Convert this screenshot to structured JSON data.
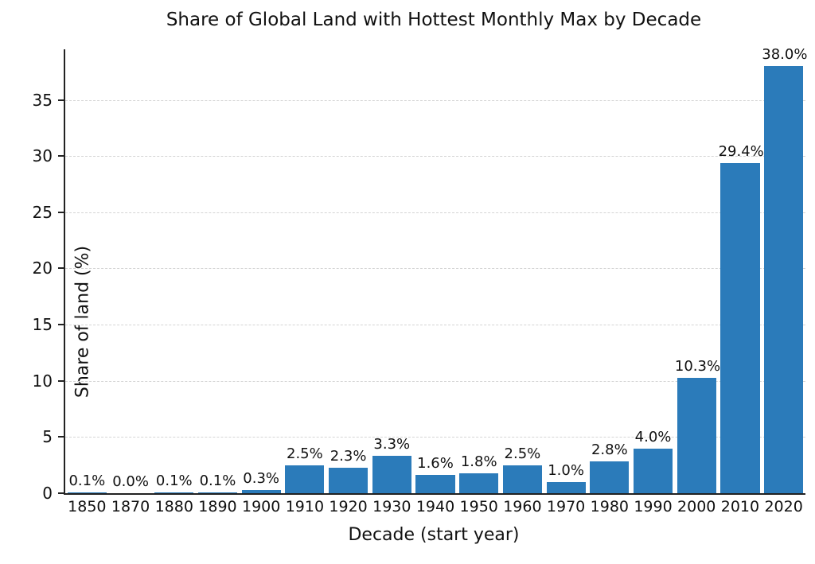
{
  "chart_data": {
    "type": "bar",
    "title": "Share of Global Land with Hottest Monthly Max by Decade",
    "xlabel": "Decade (start year)",
    "ylabel": "Share of land (%)",
    "categories": [
      "1850",
      "1870",
      "1880",
      "1890",
      "1900",
      "1910",
      "1920",
      "1930",
      "1940",
      "1950",
      "1960",
      "1970",
      "1980",
      "1990",
      "2000",
      "2010",
      "2020"
    ],
    "values": [
      0.1,
      0.0,
      0.1,
      0.1,
      0.3,
      2.5,
      2.3,
      3.3,
      1.6,
      1.8,
      2.5,
      1.0,
      2.8,
      4.0,
      10.3,
      29.4,
      38.0
    ],
    "value_labels": [
      "0.1%",
      "0.0%",
      "0.1%",
      "0.1%",
      "0.3%",
      "2.5%",
      "2.3%",
      "3.3%",
      "1.6%",
      "1.8%",
      "2.5%",
      "1.0%",
      "2.8%",
      "4.0%",
      "10.3%",
      "29.4%",
      "38.0%"
    ],
    "yticks": [
      0,
      5,
      10,
      15,
      20,
      25,
      30,
      35
    ],
    "ylim": [
      0,
      39.5
    ],
    "bar_color": "#2b7bba",
    "grid": true,
    "legend_position": "none"
  }
}
